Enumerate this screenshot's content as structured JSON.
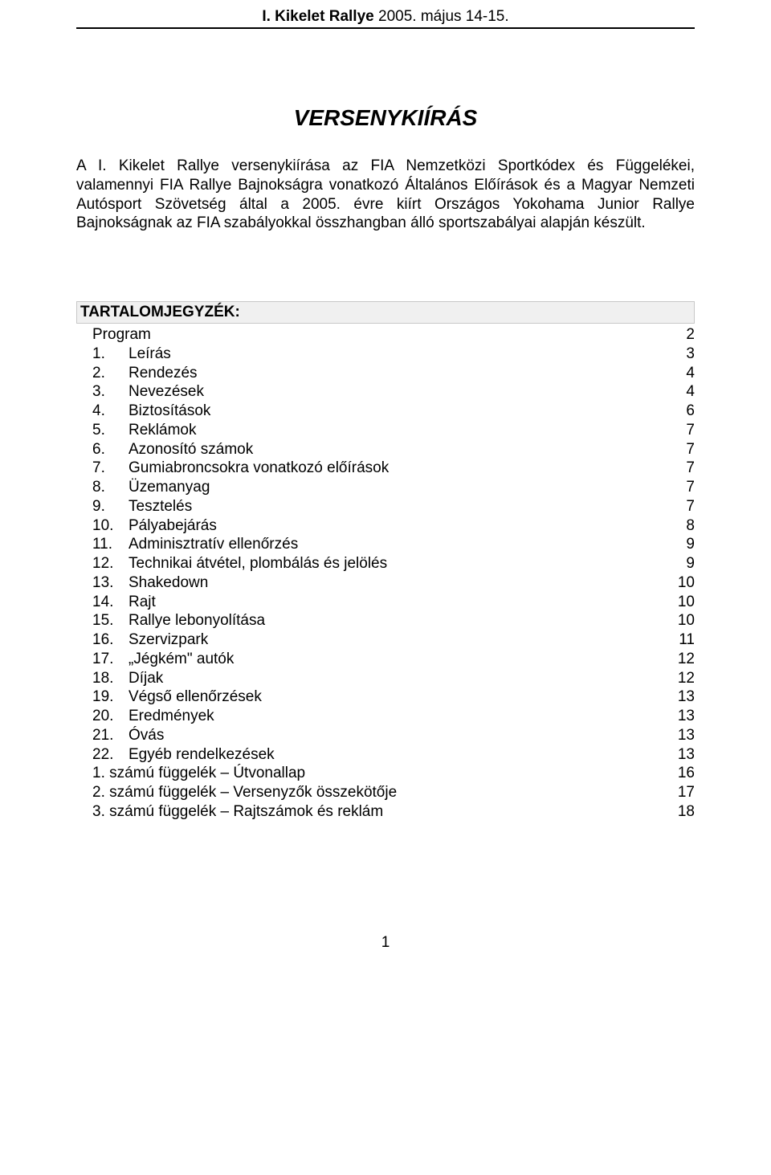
{
  "header": {
    "bold_part": "I. Kikelet Rallye",
    "light_part": " 2005. május 14-15."
  },
  "title": "VERSENYKIÍRÁS",
  "intro": "A I. Kikelet Rallye versenykiírása az FIA Nemzetközi Sportkódex és Függelékei, valamennyi FIA Rallye Bajnokságra vonatkozó Általános Előírások és a Magyar Nemzeti Autósport Szövetség által a 2005. évre kiírt Országos Yokohama Junior Rallye Bajnokságnak az FIA szabályokkal összhangban álló sportszabályai alapján készült.",
  "toc_heading": "TARTALOMJEGYZÉK:",
  "toc": [
    {
      "num": "",
      "label": "Program",
      "page": "2"
    },
    {
      "num": "1.",
      "label": "Leírás",
      "page": "3"
    },
    {
      "num": "2.",
      "label": "Rendezés",
      "page": "4"
    },
    {
      "num": "3.",
      "label": "Nevezések",
      "page": "4"
    },
    {
      "num": "4.",
      "label": "Biztosítások",
      "page": "6"
    },
    {
      "num": "5.",
      "label": "Reklámok",
      "page": "7"
    },
    {
      "num": "6.",
      "label": "Azonosító számok",
      "page": "7"
    },
    {
      "num": "7.",
      "label": "Gumiabroncsokra vonatkozó előírások",
      "page": "7"
    },
    {
      "num": "8.",
      "label": "Üzemanyag",
      "page": "7"
    },
    {
      "num": "9.",
      "label": "Tesztelés",
      "page": "7"
    },
    {
      "num": "10.",
      "label": "Pályabejárás",
      "page": "8"
    },
    {
      "num": "11.",
      "label": "Adminisztratív ellenőrzés",
      "page": "9"
    },
    {
      "num": "12.",
      "label": "Technikai átvétel, plombálás és jelölés",
      "page": "9"
    },
    {
      "num": "13.",
      "label": "Shakedown",
      "page": "10"
    },
    {
      "num": "14.",
      "label": "Rajt",
      "page": "10"
    },
    {
      "num": "15.",
      "label": "Rallye lebonyolítása",
      "page": "10"
    },
    {
      "num": "16.",
      "label": "Szervizpark",
      "page": "11"
    },
    {
      "num": "17.",
      "label": "„Jégkém\" autók",
      "page": "12"
    },
    {
      "num": "18.",
      "label": "Díjak",
      "page": "12"
    },
    {
      "num": "19.",
      "label": "Végső ellenőrzések",
      "page": "13"
    },
    {
      "num": "20.",
      "label": "Eredmények",
      "page": "13"
    },
    {
      "num": "21.",
      "label": "Óvás",
      "page": "13"
    },
    {
      "num": "22.",
      "label": "Egyéb rendelkezések",
      "page": "13"
    },
    {
      "num": "",
      "label": "1. számú függelék – Útvonallap",
      "page": "16"
    },
    {
      "num": "",
      "label": "2. számú függelék – Versenyzők összekötője",
      "page": "17"
    },
    {
      "num": "",
      "label": "3. számú függelék – Rajtszámok és reklám",
      "page": "18"
    }
  ],
  "page_number": "1"
}
